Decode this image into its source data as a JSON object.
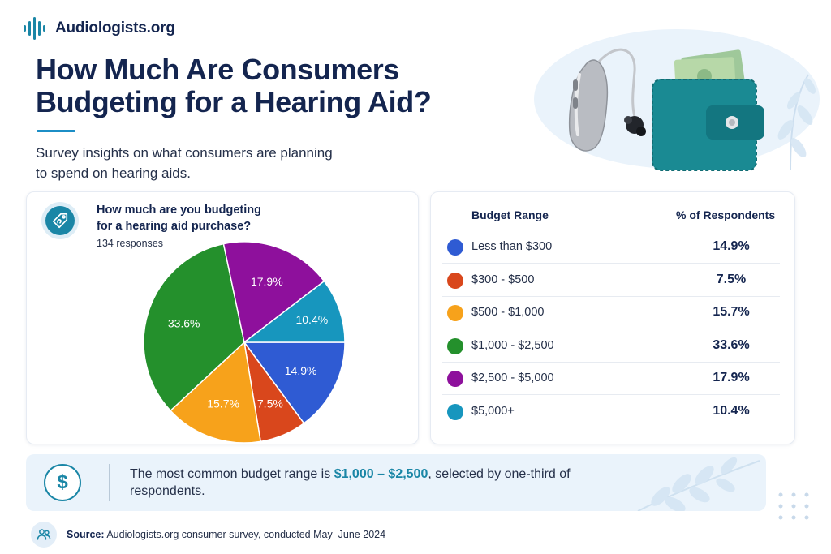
{
  "brand": {
    "name": "Audiologists.org",
    "accent": "#1a86a6",
    "navy": "#14254f"
  },
  "header": {
    "title_line1": "How Much Are Consumers",
    "title_line2": "Budgeting for a Hearing Aid?",
    "subtitle_line1": "Survey insights on what consumers are planning",
    "subtitle_line2": "to spend on hearing aids."
  },
  "hero": {
    "icons": [
      "hearing-aid-icon",
      "wallet-icon",
      "money-icon",
      "leaf-icon"
    ]
  },
  "survey": {
    "question_line1": "How much are you budgeting",
    "question_line2": "for a hearing aid purchase?",
    "responses": "134 responses",
    "icon": "price-tag-ear-icon"
  },
  "chart_data": {
    "type": "pie",
    "unit": "%",
    "categories": [
      "Less than $300",
      "$300 - $500",
      "$500 - $1,000",
      "$1,000 - $2,500",
      "$2,500 - $5,000",
      "$5,000+"
    ],
    "values": [
      14.9,
      7.5,
      15.7,
      33.6,
      17.9,
      10.4
    ],
    "labels": [
      "14.9%",
      "7.5%",
      "15.7%",
      "33.6%",
      "17.9%",
      "10.4%"
    ],
    "colors": [
      "#2f5bd3",
      "#d9471c",
      "#f7a21b",
      "#24902c",
      "#8e109c",
      "#1796be"
    ],
    "order": "clockwise from 3 o'clock"
  },
  "table": {
    "header_range": "Budget Range",
    "header_pct": "% of Respondents",
    "rows": [
      {
        "range": "Less than $300",
        "pct": "14.9%",
        "color": "#2f5bd3"
      },
      {
        "range": "$300 - $500",
        "pct": "7.5%",
        "color": "#d9471c"
      },
      {
        "range": "$500 - $1,000",
        "pct": "15.7%",
        "color": "#f7a21b"
      },
      {
        "range": "$1,000 - $2,500",
        "pct": "33.6%",
        "color": "#24902c"
      },
      {
        "range": "$2,500 - $5,000",
        "pct": "17.9%",
        "color": "#8e109c"
      },
      {
        "range": "$5,000+",
        "pct": "10.4%",
        "color": "#1796be"
      }
    ]
  },
  "insight": {
    "text_before": "The most common budget range is ",
    "highlight": "$1,000 – $2,500",
    "text_after": ", selected by one-third of respondents.",
    "icon": "dollar-icon"
  },
  "source": {
    "label": "Source:",
    "text": " Audiologists.org consumer survey, conducted May–June 2024",
    "icon": "people-icon"
  }
}
